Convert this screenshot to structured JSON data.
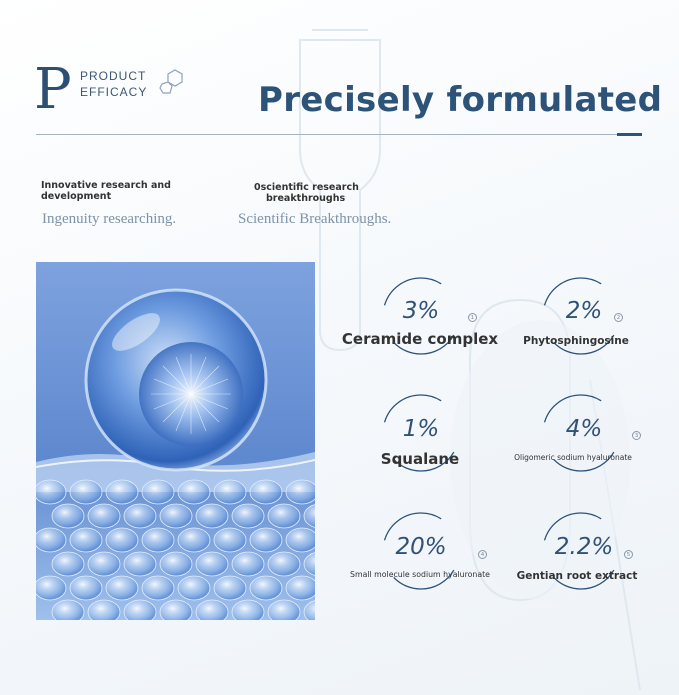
{
  "logo": {
    "letter": "P",
    "line1": "PRODUCT",
    "line2": "EFFICACY",
    "icon": "molecule-icon"
  },
  "title": "Precisely formulated",
  "features": [
    {
      "title_line1": "Innovative research and",
      "title_line2": "development",
      "subtitle": "Ingenuity researching."
    },
    {
      "title_line1": "0scientific research",
      "title_line2": "breakthroughs",
      "subtitle": "Scientific Breakthroughs."
    }
  ],
  "image": {
    "description_icon": "skin-cell-sphere-image"
  },
  "ingredients": [
    {
      "percent": "3%",
      "name": "Ceramide complex",
      "marker": "1"
    },
    {
      "percent": "2%",
      "name": "Phytosphingosine",
      "marker": "2"
    },
    {
      "percent": "1%",
      "name": "Squalane",
      "marker": ""
    },
    {
      "percent": "4%",
      "name": "Oligomeric sodium hyaluronate",
      "marker": "3"
    },
    {
      "percent": "20%",
      "name": "Small molecule sodium hyaluronate",
      "marker": "4"
    },
    {
      "percent": "2.2%",
      "name": "Gentian root extract",
      "marker": "5"
    }
  ],
  "colors": {
    "accent": "#2d5378",
    "text": "#333333",
    "subtitle": "#7e92a8",
    "image_bg": "#6b92d3"
  }
}
